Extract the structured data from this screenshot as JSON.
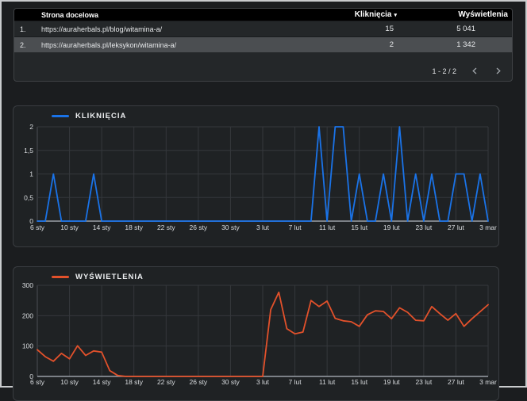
{
  "table": {
    "columns": {
      "page": "Strona docelowa",
      "clicks": "Kliknięcia",
      "impressions": "Wyświetlenia"
    },
    "sort_indicator": "▾",
    "rows": [
      {
        "index": "1.",
        "url": "https://auraherbals.pl/blog/witamina-a/",
        "clicks": "15",
        "impressions": "5 041"
      },
      {
        "index": "2.",
        "url": "https://auraherbals.pl/leksykon/witamina-a/",
        "clicks": "2",
        "impressions": "1 342"
      }
    ],
    "pagination": {
      "label": "1 - 2 / 2"
    }
  },
  "colors": {
    "clicks_line": "#1a73e8",
    "impressions_line": "#e2512b",
    "selected_row_bg": "#4b4e51",
    "table_header_bg": "#000000",
    "panel_border": "#393c40",
    "axis_baseline": "#9aa0a6",
    "gridline": "#35383c"
  },
  "chart_data": [
    {
      "type": "line",
      "title": "KLIKNIĘCIA",
      "color": "#1a73e8",
      "legend_position": "top-left",
      "grid": true,
      "ylim": [
        0,
        2
      ],
      "y_tick_values": [
        2,
        1.5,
        1,
        0.5,
        0
      ],
      "y_ticks": [
        "2",
        "1,5",
        "1",
        "0,5",
        "0"
      ],
      "x_tick_every": 4,
      "x_tick_labels": [
        "6 sty",
        "10 sty",
        "14 sty",
        "18 sty",
        "22 sty",
        "26 sty",
        "30 sty",
        "3 lut",
        "7 lut",
        "11 lut",
        "15 lut",
        "19 lut",
        "23 lut",
        "27 lut",
        "3 mar"
      ],
      "x": [
        "6 sty",
        "7 sty",
        "8 sty",
        "9 sty",
        "10 sty",
        "11 sty",
        "12 sty",
        "13 sty",
        "14 sty",
        "15 sty",
        "16 sty",
        "17 sty",
        "18 sty",
        "19 sty",
        "20 sty",
        "21 sty",
        "22 sty",
        "23 sty",
        "24 sty",
        "25 sty",
        "26 sty",
        "27 sty",
        "28 sty",
        "29 sty",
        "30 sty",
        "31 sty",
        "1 lut",
        "2 lut",
        "3 lut",
        "4 lut",
        "5 lut",
        "6 lut",
        "7 lut",
        "8 lut",
        "9 lut",
        "10 lut",
        "11 lut",
        "12 lut",
        "13 lut",
        "14 lut",
        "15 lut",
        "16 lut",
        "17 lut",
        "18 lut",
        "19 lut",
        "20 lut",
        "21 lut",
        "22 lut",
        "23 lut",
        "24 lut",
        "25 lut",
        "26 lut",
        "27 lut",
        "28 lut",
        "1 mar",
        "2 mar",
        "3 mar"
      ],
      "values": [
        0,
        0,
        1,
        0,
        0,
        0,
        0,
        1,
        0,
        0,
        0,
        0,
        0,
        0,
        0,
        0,
        0,
        0,
        0,
        0,
        0,
        0,
        0,
        0,
        0,
        0,
        0,
        0,
        0,
        0,
        0,
        0,
        0,
        0,
        0,
        2,
        0,
        2,
        2,
        0,
        1,
        0,
        0,
        1,
        0,
        2,
        0,
        1,
        0,
        1,
        0,
        0,
        1,
        1,
        0,
        1,
        0
      ]
    },
    {
      "type": "line",
      "title": "WYŚWIETLENIA",
      "color": "#e2512b",
      "legend_position": "top-left",
      "grid": true,
      "ylim": [
        0,
        300
      ],
      "y_tick_values": [
        300,
        200,
        100,
        0
      ],
      "y_ticks": [
        "300",
        "200",
        "100",
        "0"
      ],
      "x_tick_every": 4,
      "x_tick_labels": [
        "6 sty",
        "10 sty",
        "14 sty",
        "18 sty",
        "22 sty",
        "26 sty",
        "30 sty",
        "3 lut",
        "7 lut",
        "11 lut",
        "15 lut",
        "19 lut",
        "23 lut",
        "27 lut",
        "3 mar"
      ],
      "x": [
        "6 sty",
        "7 sty",
        "8 sty",
        "9 sty",
        "10 sty",
        "11 sty",
        "12 sty",
        "13 sty",
        "14 sty",
        "15 sty",
        "16 sty",
        "17 sty",
        "18 sty",
        "19 sty",
        "20 sty",
        "21 sty",
        "22 sty",
        "23 sty",
        "24 sty",
        "25 sty",
        "26 sty",
        "27 sty",
        "28 sty",
        "29 sty",
        "30 sty",
        "31 sty",
        "1 lut",
        "2 lut",
        "3 lut",
        "4 lut",
        "5 lut",
        "6 lut",
        "7 lut",
        "8 lut",
        "9 lut",
        "10 lut",
        "11 lut",
        "12 lut",
        "13 lut",
        "14 lut",
        "15 lut",
        "16 lut",
        "17 lut",
        "18 lut",
        "19 lut",
        "20 lut",
        "21 lut",
        "22 lut",
        "23 lut",
        "24 lut",
        "25 lut",
        "26 lut",
        "27 lut",
        "28 lut",
        "1 mar",
        "2 mar",
        "3 mar"
      ],
      "values": [
        88,
        65,
        50,
        76,
        58,
        101,
        69,
        84,
        80,
        19,
        3,
        0,
        0,
        0,
        0,
        0,
        0,
        0,
        0,
        0,
        0,
        0,
        0,
        0,
        0,
        0,
        0,
        0,
        0,
        220,
        277,
        157,
        140,
        146,
        250,
        230,
        248,
        191,
        183,
        180,
        165,
        203,
        216,
        214,
        190,
        226,
        211,
        185,
        183,
        230,
        207,
        185,
        207,
        165,
        190,
        213,
        236
      ]
    }
  ]
}
